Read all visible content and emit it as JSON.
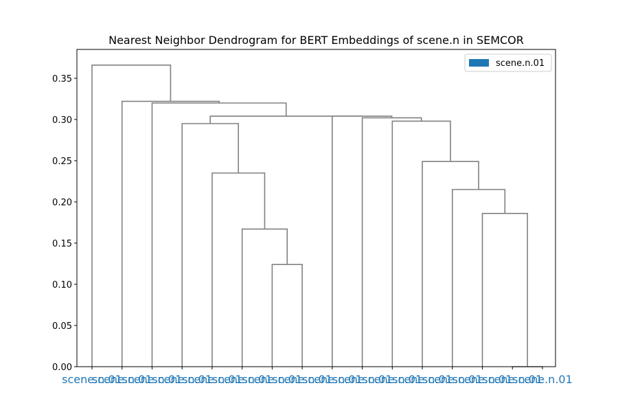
{
  "chart_data": {
    "type": "dendrogram",
    "title": "Nearest Neighbor Dendrogram for BERT Embeddings of scene.n in SEMCOR",
    "xlabel": "",
    "ylabel": "",
    "ylim": [
      0,
      0.385
    ],
    "yticks": [
      "0.00",
      "0.05",
      "0.10",
      "0.15",
      "0.20",
      "0.25",
      "0.30",
      "0.35"
    ],
    "ytick_values": [
      0.0,
      0.05,
      0.1,
      0.15,
      0.2,
      0.25,
      0.3,
      0.35
    ],
    "leaf_labels": [
      "scene.n.01",
      "scene.n.01",
      "scene.n.01",
      "scene.n.01",
      "scene.n.01",
      "scene.n.01",
      "scene.n.01",
      "scene.n.01",
      "scene.n.01",
      "scene.n.01",
      "scene.n.01",
      "scene.n.01",
      "scene.n.01",
      "scene.n.01",
      "scene.n.01",
      "scene.n.01"
    ],
    "merges": [
      {
        "left": 6,
        "right": 7,
        "height": 0.124
      },
      {
        "left": 5,
        "right": 16,
        "height": 0.167
      },
      {
        "left": 4,
        "right": 17,
        "height": 0.235
      },
      {
        "left": 3,
        "right": 18,
        "height": 0.295
      },
      {
        "left": 14,
        "right": 15,
        "height": 0.0
      },
      {
        "left": 13,
        "right": 20,
        "height": 0.186
      },
      {
        "left": 12,
        "right": 21,
        "height": 0.215
      },
      {
        "left": 11,
        "right": 22,
        "height": 0.249
      },
      {
        "left": 10,
        "right": 23,
        "height": 0.298
      },
      {
        "left": 9,
        "right": 24,
        "height": 0.302
      },
      {
        "left": 8,
        "right": 25,
        "height": 0.304
      },
      {
        "left": 19,
        "right": 26,
        "height": 0.304
      },
      {
        "left": 2,
        "right": 27,
        "height": 0.32
      },
      {
        "left": 1,
        "right": 28,
        "height": 0.322
      },
      {
        "left": 0,
        "right": 29,
        "height": 0.366
      }
    ],
    "legend": [
      {
        "label": "scene.n.01",
        "color": "#1f77b4"
      }
    ],
    "legend_position": "top-right",
    "line_color": "#808080",
    "leaf_label_color": "#1f77b4",
    "grid": false
  }
}
